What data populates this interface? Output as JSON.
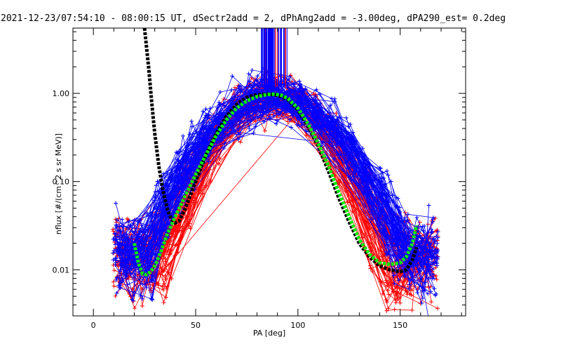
{
  "chart_data": {
    "type": "line",
    "title": "2021-12-23/07:54:10 - 08:00:15 UT, dSectr2add = 2, dPhAng2add = -3.00deg, dPA290_est=   0.2deg",
    "xlabel": "PA [deg]",
    "ylabel": "nflux [#/(cm^2 s sr MeV)]",
    "xlim": [
      -10,
      182
    ],
    "ylim_log": [
      0.003,
      5.5
    ],
    "y_scale": "log",
    "x_ticks": [
      "0",
      "50",
      "100",
      "150"
    ],
    "y_ticks": [
      "0.01",
      "0.10",
      "1.00"
    ],
    "colors": {
      "red_series": "#ff0000",
      "blue_series": "#0000ff",
      "black_fit": "#000000",
      "green_fit": "#00ee00",
      "axis": "#000000"
    },
    "series": [
      {
        "color_role": "black_fit",
        "style": "thick-dashed",
        "x": [
          25,
          27,
          28.5,
          30,
          32,
          34,
          36,
          38,
          40,
          42,
          45,
          50,
          55,
          60,
          65,
          70,
          75,
          80,
          85,
          88,
          90,
          92,
          95,
          100,
          105,
          110,
          115,
          120,
          125,
          130,
          135,
          140,
          145,
          150,
          153,
          156,
          158
        ],
        "y": [
          5.5,
          2.0,
          0.8,
          0.35,
          0.15,
          0.08,
          0.05,
          0.038,
          0.034,
          0.036,
          0.05,
          0.1,
          0.2,
          0.35,
          0.55,
          0.75,
          0.9,
          0.97,
          0.98,
          0.97,
          0.95,
          0.92,
          0.85,
          0.65,
          0.42,
          0.25,
          0.13,
          0.065,
          0.035,
          0.02,
          0.014,
          0.011,
          0.01,
          0.0095,
          0.01,
          0.013,
          0.018
        ]
      },
      {
        "color_role": "green_fit",
        "style": "thick-dashed",
        "x": [
          20,
          22,
          24,
          26,
          28,
          30,
          33,
          36,
          40,
          45,
          50,
          55,
          60,
          65,
          70,
          75,
          80,
          85,
          88,
          90,
          92,
          95,
          100,
          105,
          110,
          115,
          120,
          125,
          130,
          135,
          140,
          145,
          150,
          153,
          156,
          158
        ],
        "y": [
          0.02,
          0.012,
          0.009,
          0.0088,
          0.0095,
          0.011,
          0.016,
          0.025,
          0.04,
          0.07,
          0.12,
          0.2,
          0.33,
          0.5,
          0.68,
          0.82,
          0.92,
          0.97,
          0.98,
          0.97,
          0.95,
          0.88,
          0.68,
          0.45,
          0.27,
          0.15,
          0.075,
          0.04,
          0.022,
          0.015,
          0.012,
          0.0115,
          0.012,
          0.014,
          0.02,
          0.032
        ]
      }
    ]
  }
}
